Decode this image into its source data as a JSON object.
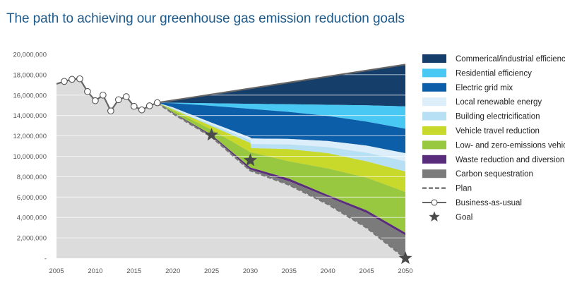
{
  "title": "The path to achieving our greenhouse gas emission reduction goals",
  "chart_data": {
    "type": "area",
    "title": "The path to achieving our greenhouse gas emission reduction goals",
    "xlabel": "",
    "ylabel": "",
    "xlim": [
      2005,
      2050
    ],
    "ylim": [
      0,
      20000000
    ],
    "x_ticks": [
      "2005",
      "2010",
      "2015",
      "2020",
      "2025",
      "2030",
      "2035",
      "2040",
      "2045",
      "2050"
    ],
    "y_ticks": [
      "-",
      "2,000,000",
      "4,000,000",
      "6,000,000",
      "8,000,000",
      "10,000,000",
      "12,000,000",
      "14,000,000",
      "16,000,000",
      "18,000,000",
      "20,000,000"
    ],
    "grid": true,
    "legend_position": "right",
    "history": {
      "name": "Business-as-usual",
      "x": [
        2005,
        2006,
        2007,
        2008,
        2009,
        2010,
        2011,
        2012,
        2013,
        2014,
        2015,
        2016,
        2017,
        2018
      ],
      "y": [
        17100000,
        17350000,
        17550000,
        17600000,
        16350000,
        15450000,
        16000000,
        14450000,
        15550000,
        15850000,
        14900000,
        14550000,
        14950000,
        15250000
      ],
      "markers": [
        false,
        true,
        true,
        true,
        true,
        true,
        true,
        true,
        true,
        true,
        true,
        true,
        true,
        true
      ]
    },
    "bau_projection": {
      "x": [
        2018,
        2050
      ],
      "y": [
        15250000,
        19000000
      ]
    },
    "series": [
      {
        "name": "Commerical/industrial efficiency",
        "color": "#153e6b",
        "x": [
          2018,
          2020,
          2025,
          2030,
          2035,
          2040,
          2045,
          2050
        ],
        "y": [
          15250000,
          15250000,
          15200000,
          15150000,
          15100000,
          15050000,
          15000000,
          14900000
        ]
      },
      {
        "name": "Residential efficiency",
        "color": "#48c8f3",
        "x": [
          2018,
          2020,
          2025,
          2030,
          2035,
          2040,
          2045,
          2050
        ],
        "y": [
          15250000,
          15200000,
          14950000,
          14650000,
          14350000,
          13950000,
          13400000,
          12700000
        ]
      },
      {
        "name": "Electric grid mix",
        "color": "#0d5ea9",
        "x": [
          2018,
          2020,
          2025,
          2030,
          2030.1,
          2035,
          2040,
          2045,
          2050
        ],
        "y": [
          15250000,
          14800000,
          13300000,
          11850000,
          11750000,
          11700000,
          11500000,
          11050000,
          10300000
        ]
      },
      {
        "name": "Local renewable energy",
        "color": "#dbeef9",
        "x": [
          2018,
          2020,
          2025,
          2030,
          2030.1,
          2035,
          2040,
          2045,
          2050
        ],
        "y": [
          15250000,
          14700000,
          13100000,
          11600000,
          11200000,
          11150000,
          10900000,
          10350000,
          9500000
        ]
      },
      {
        "name": "Building electricification",
        "color": "#b8e0f5",
        "x": [
          2018,
          2020,
          2025,
          2030,
          2030.1,
          2035,
          2040,
          2045,
          2050
        ],
        "y": [
          15250000,
          14600000,
          12950000,
          11300000,
          10800000,
          10700000,
          10300000,
          9500000,
          8500000
        ]
      },
      {
        "name": "Vehicle travel reduction",
        "color": "#c8d92b",
        "x": [
          2018,
          2020,
          2025,
          2030,
          2035,
          2040,
          2045,
          2050
        ],
        "y": [
          15250000,
          14500000,
          12600000,
          10400000,
          9500000,
          8800000,
          7900000,
          6500000
        ]
      },
      {
        "name": "Low- and zero-emissions vehicles",
        "color": "#98c740",
        "x": [
          2018,
          2020,
          2025,
          2030,
          2035,
          2040,
          2045,
          2050
        ],
        "y": [
          15250000,
          14300000,
          12100000,
          8900000,
          7800000,
          6200000,
          4700000,
          2500000
        ]
      },
      {
        "name": "Waste reduction and diversion",
        "color": "#5a2d7c",
        "x": [
          2018,
          2020,
          2025,
          2030,
          2035,
          2040,
          2045,
          2050
        ],
        "y": [
          15250000,
          14250000,
          12000000,
          8700000,
          7550000,
          6000000,
          4450000,
          2250000
        ]
      },
      {
        "name": "Carbon sequestration",
        "color": "#7b7b7b",
        "x": [
          2018,
          2020,
          2025,
          2030,
          2035,
          2040,
          2045,
          2050
        ],
        "y": [
          15250000,
          14200000,
          11900000,
          8600000,
          7200000,
          5300000,
          3000000,
          0
        ]
      }
    ],
    "plan": {
      "name": "Plan",
      "x": [
        2018,
        2020,
        2025,
        2030,
        2035,
        2040,
        2045,
        2050
      ],
      "y": [
        15250000,
        14200000,
        11900000,
        8600000,
        7200000,
        5300000,
        3000000,
        0
      ]
    },
    "goals": {
      "name": "Goal",
      "x": [
        2025,
        2030,
        2050
      ],
      "y": [
        12100000,
        9600000,
        0
      ]
    },
    "legend": [
      {
        "label": "Commerical/industrial efficiency",
        "kind": "swatch",
        "color": "#153e6b"
      },
      {
        "label": "Residential efficiency",
        "kind": "swatch",
        "color": "#48c8f3"
      },
      {
        "label": "Electric grid mix",
        "kind": "swatch",
        "color": "#0d5ea9"
      },
      {
        "label": "Local renewable energy",
        "kind": "swatch",
        "color": "#dbeef9"
      },
      {
        "label": "Building electricification",
        "kind": "swatch",
        "color": "#b8e0f5"
      },
      {
        "label": "Vehicle travel reduction",
        "kind": "swatch",
        "color": "#c8d92b"
      },
      {
        "label": "Low- and zero-emissions vehicles",
        "kind": "swatch",
        "color": "#98c740"
      },
      {
        "label": "Waste reduction and diversion",
        "kind": "swatch",
        "color": "#5a2d7c"
      },
      {
        "label": "Carbon sequestration",
        "kind": "swatch",
        "color": "#7b7b7b"
      },
      {
        "label": "Plan",
        "kind": "dashed"
      },
      {
        "label": "Business-as-usual",
        "kind": "line-marker"
      },
      {
        "label": "Goal",
        "kind": "star"
      }
    ],
    "colors": {
      "background_area": "#dcdcdc",
      "grid": "#ffffff",
      "line": "#666666",
      "star": "#4a4a4a",
      "title": "#1d5a8a"
    }
  }
}
